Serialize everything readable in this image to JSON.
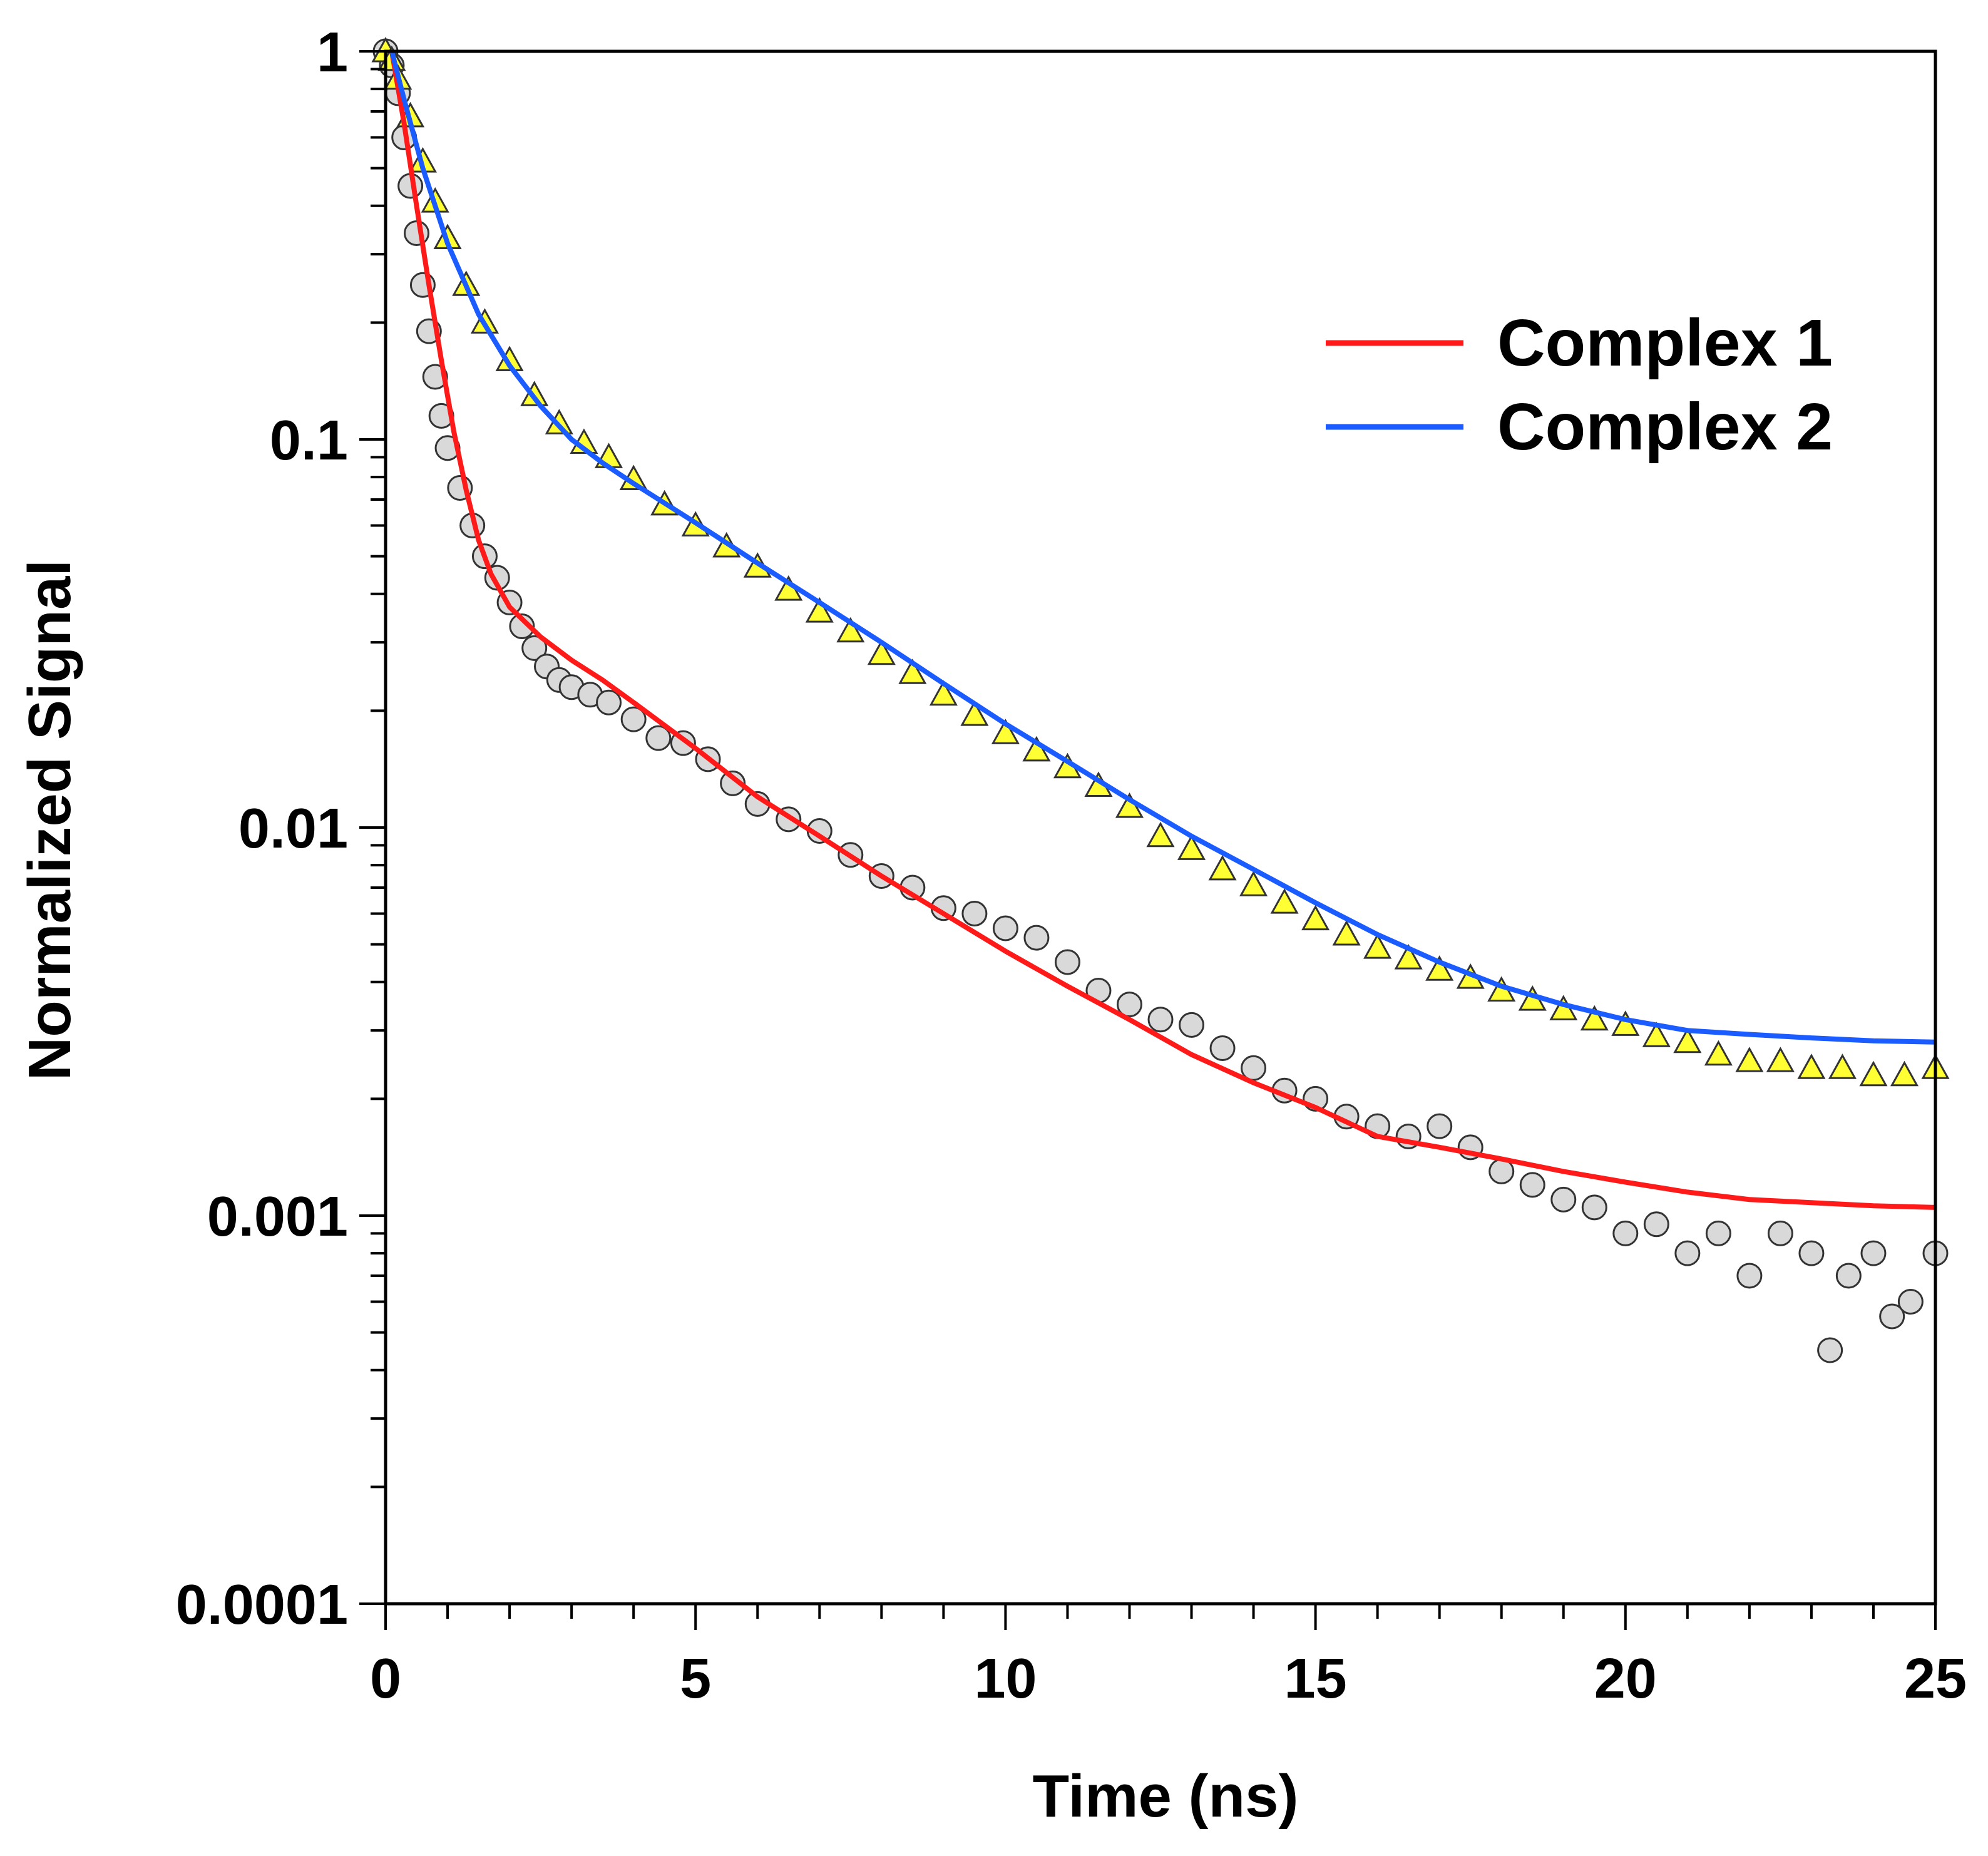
{
  "chart_data": {
    "type": "scatter",
    "title": "",
    "xlabel": "Time (ns)",
    "ylabel": "Normalized Signal",
    "xlim": [
      0,
      25
    ],
    "ylim": [
      0.0001,
      1
    ],
    "yscale": "log",
    "x_ticks": [
      0,
      5,
      10,
      15,
      20,
      25
    ],
    "x_tick_labels": [
      "0",
      "5",
      "10",
      "15",
      "20",
      "25"
    ],
    "y_ticks": [
      1,
      0.1,
      0.01,
      0.001,
      0.0001
    ],
    "y_tick_labels": [
      "1",
      "0.1",
      "0.01",
      "0.001",
      "0.0001"
    ],
    "grid": false,
    "legend_position": "top-right",
    "colors": {
      "fit1": "#ff1a1a",
      "fit2": "#1a5cff",
      "marker1_fill": "#d9d9d9",
      "marker2_fill": "#ffff33",
      "marker_edge": "#333333"
    },
    "series": [
      {
        "name": "Complex 1",
        "kind": "fit",
        "color": "#ff1a1a",
        "x": [
          0.1,
          0.3,
          0.5,
          0.7,
          0.9,
          1.1,
          1.3,
          1.5,
          1.7,
          2.0,
          2.5,
          3.0,
          3.5,
          4,
          5,
          6,
          7,
          8,
          9,
          10,
          11,
          12,
          13,
          14,
          15,
          16,
          17,
          18,
          19,
          20,
          21,
          22,
          23,
          24,
          25
        ],
        "y": [
          1.0,
          0.65,
          0.4,
          0.25,
          0.16,
          0.105,
          0.074,
          0.055,
          0.045,
          0.037,
          0.031,
          0.027,
          0.024,
          0.021,
          0.016,
          0.012,
          0.0095,
          0.0075,
          0.006,
          0.0048,
          0.0039,
          0.0032,
          0.0026,
          0.0022,
          0.0019,
          0.0016,
          0.0015,
          0.0014,
          0.0013,
          0.00122,
          0.00115,
          0.0011,
          0.00108,
          0.00106,
          0.00105
        ]
      },
      {
        "name": "Complex 2",
        "kind": "fit",
        "color": "#1a5cff",
        "x": [
          0.1,
          0.3,
          0.6,
          1.0,
          1.5,
          2.0,
          2.5,
          3.0,
          3.5,
          4,
          5,
          6,
          7,
          8,
          9,
          10,
          11,
          12,
          13,
          14,
          15,
          16,
          17,
          18,
          19,
          20,
          21,
          22,
          23,
          24,
          25
        ],
        "y": [
          1.0,
          0.75,
          0.5,
          0.32,
          0.21,
          0.155,
          0.122,
          0.1,
          0.087,
          0.077,
          0.061,
          0.048,
          0.038,
          0.03,
          0.0235,
          0.0185,
          0.0148,
          0.0118,
          0.0095,
          0.0078,
          0.0064,
          0.0053,
          0.0045,
          0.0039,
          0.0035,
          0.0032,
          0.003,
          0.00293,
          0.00287,
          0.00282,
          0.0028
        ]
      },
      {
        "name": "Complex 1 data",
        "kind": "markers",
        "marker": "circle",
        "fill": "#d9d9d9",
        "x": [
          0.0,
          0.1,
          0.2,
          0.3,
          0.4,
          0.5,
          0.6,
          0.7,
          0.8,
          0.9,
          1.0,
          1.2,
          1.4,
          1.6,
          1.8,
          2.0,
          2.2,
          2.4,
          2.6,
          2.8,
          3.0,
          3.3,
          3.6,
          4.0,
          4.4,
          4.8,
          5.2,
          5.6,
          6.0,
          6.5,
          7.0,
          7.5,
          8.0,
          8.5,
          9.0,
          9.5,
          10.0,
          10.5,
          11.0,
          11.5,
          12.0,
          12.5,
          13.0,
          13.5,
          14.0,
          14.5,
          15.0,
          15.5,
          16.0,
          16.5,
          17.0,
          17.5,
          18.0,
          18.5,
          19.0,
          19.5,
          20.0,
          20.5,
          21.0,
          21.5,
          22.0,
          22.5,
          23.0,
          23.3,
          23.6,
          24.0,
          24.3,
          24.6,
          25.0
        ],
        "y": [
          1.0,
          0.92,
          0.78,
          0.6,
          0.45,
          0.34,
          0.25,
          0.19,
          0.145,
          0.115,
          0.095,
          0.075,
          0.06,
          0.05,
          0.044,
          0.038,
          0.033,
          0.029,
          0.026,
          0.024,
          0.023,
          0.022,
          0.021,
          0.019,
          0.017,
          0.0165,
          0.015,
          0.013,
          0.0115,
          0.0105,
          0.0098,
          0.0085,
          0.0075,
          0.007,
          0.0062,
          0.006,
          0.0055,
          0.0052,
          0.0045,
          0.0038,
          0.0035,
          0.0032,
          0.0031,
          0.0027,
          0.0024,
          0.0021,
          0.002,
          0.0018,
          0.0017,
          0.0016,
          0.0017,
          0.0015,
          0.0013,
          0.0012,
          0.0011,
          0.00105,
          0.0009,
          0.00095,
          0.0008,
          0.0009,
          0.0007,
          0.0009,
          0.0008,
          0.00045,
          0.0007,
          0.0008,
          0.00055,
          0.0006,
          0.0008
        ]
      },
      {
        "name": "Complex 2 data",
        "kind": "markers",
        "marker": "triangle",
        "fill": "#ffff33",
        "x": [
          0.0,
          0.1,
          0.2,
          0.4,
          0.6,
          0.8,
          1.0,
          1.3,
          1.6,
          2.0,
          2.4,
          2.8,
          3.2,
          3.6,
          4.0,
          4.5,
          5.0,
          5.5,
          6.0,
          6.5,
          7.0,
          7.5,
          8.0,
          8.5,
          9.0,
          9.5,
          10.0,
          10.5,
          11.0,
          11.5,
          12.0,
          12.5,
          13.0,
          13.5,
          14.0,
          14.5,
          15.0,
          15.5,
          16.0,
          16.5,
          17.0,
          17.5,
          18.0,
          18.5,
          19.0,
          19.5,
          20.0,
          20.5,
          21.0,
          21.5,
          22.0,
          22.5,
          23.0,
          23.5,
          24.0,
          24.5,
          25.0
        ],
        "y": [
          1.0,
          0.95,
          0.85,
          0.68,
          0.52,
          0.41,
          0.33,
          0.25,
          0.2,
          0.16,
          0.13,
          0.11,
          0.098,
          0.09,
          0.079,
          0.068,
          0.06,
          0.053,
          0.047,
          0.041,
          0.036,
          0.032,
          0.028,
          0.025,
          0.022,
          0.0195,
          0.0175,
          0.0158,
          0.0143,
          0.0128,
          0.0113,
          0.0095,
          0.0088,
          0.0078,
          0.0071,
          0.0064,
          0.0058,
          0.0053,
          0.0049,
          0.0046,
          0.0043,
          0.0041,
          0.0038,
          0.0036,
          0.0034,
          0.0032,
          0.0031,
          0.0029,
          0.0028,
          0.0026,
          0.0025,
          0.0025,
          0.0024,
          0.0024,
          0.0023,
          0.0023,
          0.0024
        ]
      }
    ],
    "legend": [
      {
        "label": "Complex 1",
        "color": "#ff1a1a"
      },
      {
        "label": "Complex 2",
        "color": "#1a5cff"
      }
    ]
  }
}
